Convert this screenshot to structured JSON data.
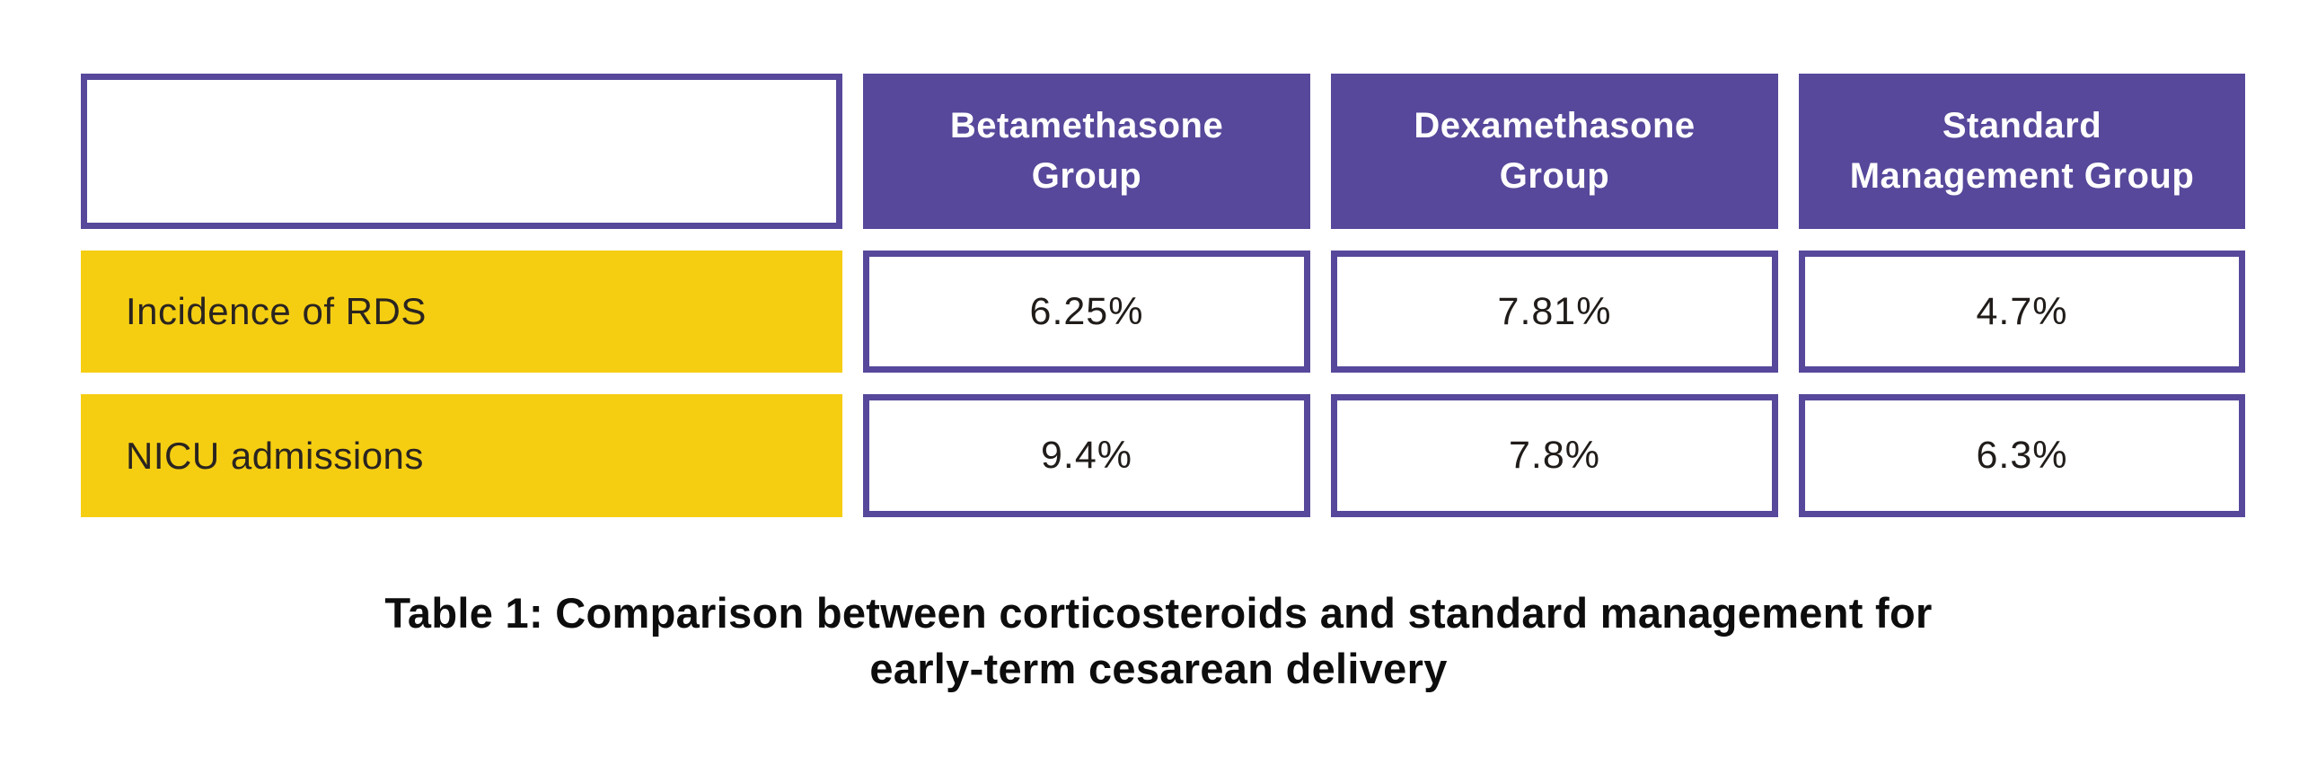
{
  "table": {
    "corner_label": "",
    "columns": [
      {
        "label": "Betamethasone\nGroup"
      },
      {
        "label": "Dexamethasone\nGroup"
      },
      {
        "label": "Standard\nManagement Group"
      }
    ],
    "rows": [
      {
        "label": "Incidence of RDS",
        "values": [
          "6.25%",
          "7.81%",
          "4.7%"
        ]
      },
      {
        "label": "NICU admissions",
        "values": [
          "9.4%",
          "7.8%",
          "6.3%"
        ]
      }
    ]
  },
  "caption": {
    "line1": "Table 1: Comparison between corticosteroids and standard management for",
    "line2": "early-term cesarean delivery"
  },
  "colors": {
    "header_purple": "#57489B",
    "border_purple": "#57489B",
    "row_yellow": "#F5CE12",
    "header_text": "#FFFFFF",
    "body_text": "#201C1A",
    "caption_text": "#0D0D0D",
    "background": "#FFFFFF"
  },
  "chart_data": {
    "type": "table",
    "title": "Table 1: Comparison between corticosteroids and standard management for early-term cesarean delivery",
    "columns": [
      "",
      "Betamethasone Group",
      "Dexamethasone Group",
      "Standard Management Group"
    ],
    "rows": [
      [
        "Incidence of RDS",
        "6.25%",
        "7.81%",
        "4.7%"
      ],
      [
        "NICU admissions",
        "9.4%",
        "7.8%",
        "6.3%"
      ]
    ],
    "values_numeric_percent": {
      "Incidence of RDS": {
        "Betamethasone Group": 6.25,
        "Dexamethasone Group": 7.81,
        "Standard Management Group": 4.7
      },
      "NICU admissions": {
        "Betamethasone Group": 9.4,
        "Dexamethasone Group": 7.8,
        "Standard Management Group": 6.3
      }
    }
  }
}
